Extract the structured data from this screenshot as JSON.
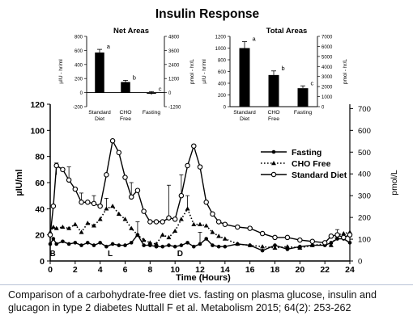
{
  "figure": {
    "title": "Insulin Response",
    "colors": {
      "border": "#b9c3d6",
      "line": "#000000",
      "marker_fill": "#ffffff"
    }
  },
  "caption": {
    "line1": "Comparison of a carbohydrate-free diet vs. fasting on plasma glucose, insulin and",
    "line2": "glucagon in type 2 diabetes Nuttall F et al. Metabolism 2015; 64(2): 253-262"
  },
  "chart_data": [
    {
      "id": "main",
      "type": "line",
      "xlabel": "Time  (Hours)",
      "ylabel": "µIU/ml",
      "y2label": "pmol/L",
      "xlim": [
        0,
        24
      ],
      "ylim": [
        0,
        120
      ],
      "y2lim": [
        0,
        720
      ],
      "xticks": [
        0,
        2,
        4,
        6,
        8,
        10,
        12,
        14,
        16,
        18,
        20,
        22,
        24
      ],
      "yticks": [
        0,
        20,
        40,
        60,
        80,
        100,
        120
      ],
      "y2ticks": [
        0,
        100,
        200,
        300,
        400,
        500,
        600,
        700
      ],
      "grid": false,
      "legend": "upper-right",
      "annotations": [
        {
          "text": "B",
          "x": 0.2
        },
        {
          "text": "L",
          "x": 4.8
        },
        {
          "text": "D",
          "x": 10.4
        }
      ],
      "series": [
        {
          "name": "Fasting",
          "marker": "filled-circle",
          "style": "solid",
          "x": [
            0,
            0.25,
            0.5,
            1,
            1.5,
            2,
            2.5,
            3,
            3.5,
            4,
            4.5,
            5,
            5.5,
            6,
            6.5,
            7,
            7.5,
            8,
            8.5,
            9,
            9.5,
            10,
            10.5,
            11,
            11.5,
            12,
            12.5,
            13,
            13.5,
            14,
            15,
            16,
            17,
            18,
            19,
            20,
            21,
            22,
            22.5,
            23,
            23.5,
            24
          ],
          "y": [
            13,
            17,
            13,
            15,
            13,
            14,
            12,
            14,
            12,
            14,
            11,
            13,
            12,
            12,
            14,
            20,
            12,
            12,
            11,
            11,
            12,
            11,
            12,
            14,
            11,
            13,
            17,
            12,
            11,
            11,
            13,
            12,
            8,
            12,
            9,
            11,
            12,
            12,
            14,
            17,
            17,
            14
          ]
        },
        {
          "name": "CHO Free",
          "marker": "filled-triangle",
          "style": "dotted",
          "x": [
            0,
            0.25,
            0.5,
            1,
            1.5,
            2,
            2.5,
            3,
            3.5,
            4,
            4.5,
            5,
            5.5,
            6,
            6.5,
            7,
            7.5,
            8,
            8.5,
            9,
            9.5,
            10,
            10.5,
            11,
            11.5,
            12,
            12.5,
            13,
            13.5,
            14,
            15,
            16,
            17,
            18,
            19,
            20,
            21,
            22,
            22.5,
            23,
            23.5,
            24
          ],
          "y": [
            22,
            26,
            25,
            26,
            25,
            28,
            22,
            29,
            27,
            32,
            40,
            42,
            36,
            32,
            25,
            20,
            16,
            14,
            13,
            20,
            18,
            23,
            32,
            40,
            28,
            28,
            27,
            22,
            19,
            17,
            13,
            12,
            11,
            10,
            11,
            10,
            12,
            13,
            12,
            20,
            21,
            22
          ]
        },
        {
          "name": "Standard Diet",
          "marker": "open-circle",
          "style": "solid",
          "x": [
            0,
            0.25,
            0.5,
            1,
            1.5,
            2,
            2.5,
            3,
            3.5,
            4,
            4.5,
            5,
            5.5,
            6,
            6.5,
            7,
            7.5,
            8,
            8.5,
            9,
            9.5,
            10,
            10.5,
            11,
            11.5,
            12,
            12.5,
            13,
            13.5,
            14,
            15,
            16,
            17,
            18,
            19,
            20,
            21,
            22,
            22.5,
            23,
            23.5,
            24
          ],
          "y": [
            20,
            42,
            73,
            70,
            62,
            55,
            45,
            45,
            44,
            42,
            66,
            92,
            83,
            64,
            49,
            54,
            38,
            30,
            30,
            30,
            33,
            32,
            50,
            73,
            88,
            72,
            45,
            36,
            30,
            28,
            26,
            25,
            21,
            18,
            18,
            16,
            15,
            14,
            19,
            20,
            18,
            20
          ]
        }
      ],
      "error_bars": [
        {
          "x": 0.5,
          "y_top": 75,
          "y_bottom": 66
        },
        {
          "x": 1.5,
          "y_top": 72,
          "y_bottom": 62
        },
        {
          "x": 2.5,
          "y_top": 52,
          "y_bottom": 45
        },
        {
          "x": 3.5,
          "y_top": 50,
          "y_bottom": 44
        },
        {
          "x": 4.5,
          "y_top": 48,
          "y_bottom": 40
        },
        {
          "x": 6.5,
          "y_top": 60,
          "y_bottom": 49
        },
        {
          "x": 7,
          "y_top": 30,
          "y_bottom": 20
        },
        {
          "x": 9.5,
          "y_top": 58,
          "y_bottom": 33
        },
        {
          "x": 10.5,
          "y_top": 66,
          "y_bottom": 50
        },
        {
          "x": 11,
          "y_top": 50,
          "y_bottom": 40
        },
        {
          "x": 12,
          "y_top": 22,
          "y_bottom": 13
        },
        {
          "x": 23,
          "y_top": 24,
          "y_bottom": 17
        }
      ]
    },
    {
      "id": "net-areas",
      "type": "bar",
      "title": "Net Areas",
      "categories": [
        "Standard Diet",
        "CHO Free",
        "Fasting"
      ],
      "values": [
        570,
        150,
        -15
      ],
      "errors": [
        45,
        25,
        15
      ],
      "labels": [
        "a",
        "b",
        "c"
      ],
      "ylabel": "µIU - hr/ml",
      "y2label": "pmol - hr/L",
      "ylim": [
        -200,
        800
      ],
      "yticks": [
        -200,
        0,
        200,
        400,
        600,
        800
      ],
      "y2ticks": [
        -1200,
        0,
        1200,
        2400,
        3600,
        4800
      ]
    },
    {
      "id": "total-areas",
      "type": "bar",
      "title": "Total Areas",
      "categories": [
        "Standard Diet",
        "CHO Free",
        "Fasting"
      ],
      "values": [
        1000,
        540,
        315
      ],
      "errors": [
        110,
        70,
        40
      ],
      "labels": [
        "a",
        "b",
        "c"
      ],
      "ylabel": "µIU - hr/ml",
      "y2label": "pmol - hr/L",
      "ylim": [
        0,
        1200
      ],
      "yticks": [
        0,
        200,
        400,
        600,
        800,
        1000,
        1200
      ],
      "y2ticks": [
        0,
        1000,
        2000,
        3000,
        4000,
        5000,
        6000,
        7000
      ]
    }
  ]
}
